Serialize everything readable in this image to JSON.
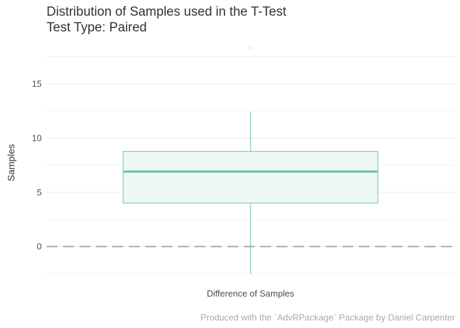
{
  "chart_data": {
    "type": "boxplot",
    "title": "Distribution of Samples used in the T-Test",
    "subtitle": "Test Type: Paired",
    "caption": "Produced with the `AdvRPackage` Package by Daniel Carpenter",
    "xlabel": "",
    "ylabel": "Samples",
    "categories": [
      "Difference of Samples"
    ],
    "ylim": [
      -2.6,
      18.8
    ],
    "yticks": [
      0,
      5,
      10,
      15
    ],
    "grid": true,
    "box": {
      "whisker_low": -2.5,
      "q1": 4.0,
      "median": 6.9,
      "q3": 8.75,
      "whisker_high": 12.4,
      "outliers": [
        18.3
      ]
    },
    "reference_line": 0,
    "colors": {
      "box_stroke": "#66c2a5",
      "box_fill": "#eef8f4",
      "reference_line": "#aaaaaa",
      "grid": "#ebebeb"
    }
  }
}
